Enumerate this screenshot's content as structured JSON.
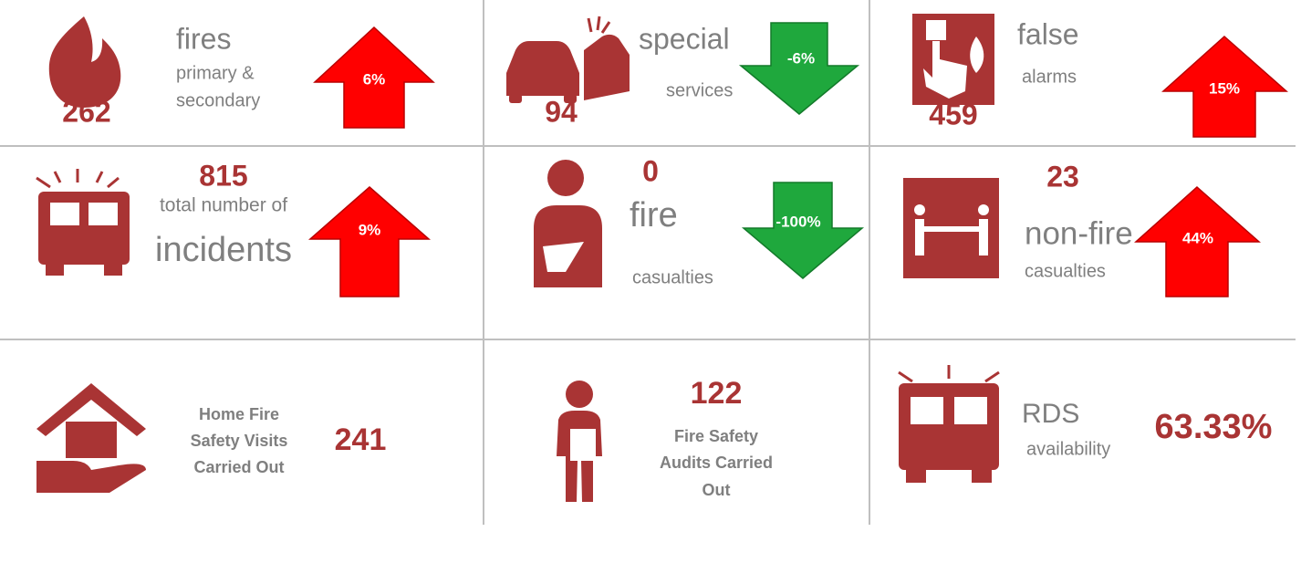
{
  "tiles": [
    {
      "value": "262",
      "label": [
        "fires",
        "primary &",
        "secondary"
      ],
      "change": "6%"
    },
    {
      "value": "94",
      "label": [
        "special",
        "services"
      ],
      "change": "-6%"
    },
    {
      "value": "459",
      "label": [
        "false",
        "alarms"
      ],
      "change": "15%"
    },
    {
      "value": "815",
      "label": [
        "total number of",
        "incidents"
      ],
      "change": "9%"
    },
    {
      "value": "0",
      "label": [
        "fire",
        "casualties"
      ],
      "change": "-100%"
    },
    {
      "value": "23",
      "label": [
        "non-fire",
        "casualties"
      ],
      "change": "44%"
    },
    {
      "value": "241",
      "label": [
        "Home Fire",
        "Safety Visits",
        "Carried Out"
      ]
    },
    {
      "value": "122",
      "label": [
        "Fire Safety",
        "Audits Carried",
        "Out"
      ]
    },
    {
      "value": "63.33%",
      "label": [
        "RDS",
        "availability"
      ]
    }
  ]
}
